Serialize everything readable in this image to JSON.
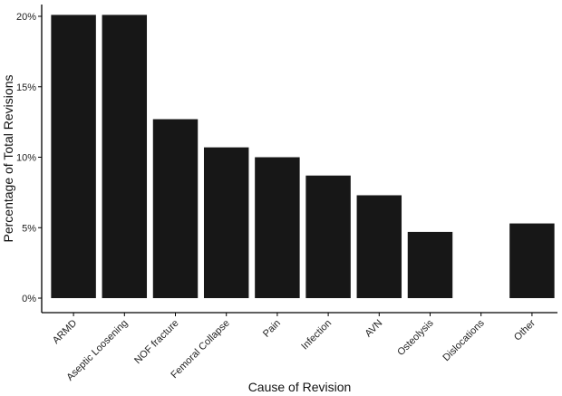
{
  "chart_data": {
    "type": "bar",
    "xlabel": "Cause of Revision",
    "ylabel": "Percentage of Total Revisions",
    "categories": [
      "ARMD",
      "Aseptic Loosening",
      "NOF fracture",
      "Femoral Collapse",
      "Pain",
      "Infection",
      "AVN",
      "Osteolysis",
      "Dislocations",
      "Other"
    ],
    "values": [
      20.1,
      20.1,
      12.7,
      10.7,
      10.0,
      8.7,
      7.3,
      4.7,
      0,
      5.3
    ],
    "ylim": [
      0,
      20.5
    ],
    "yticks": [
      0,
      5,
      10,
      15,
      20
    ],
    "ytick_labels": [
      "0%",
      "5%",
      "10%",
      "15%",
      "20%"
    ],
    "grid": false,
    "bar_color": "#171717"
  }
}
